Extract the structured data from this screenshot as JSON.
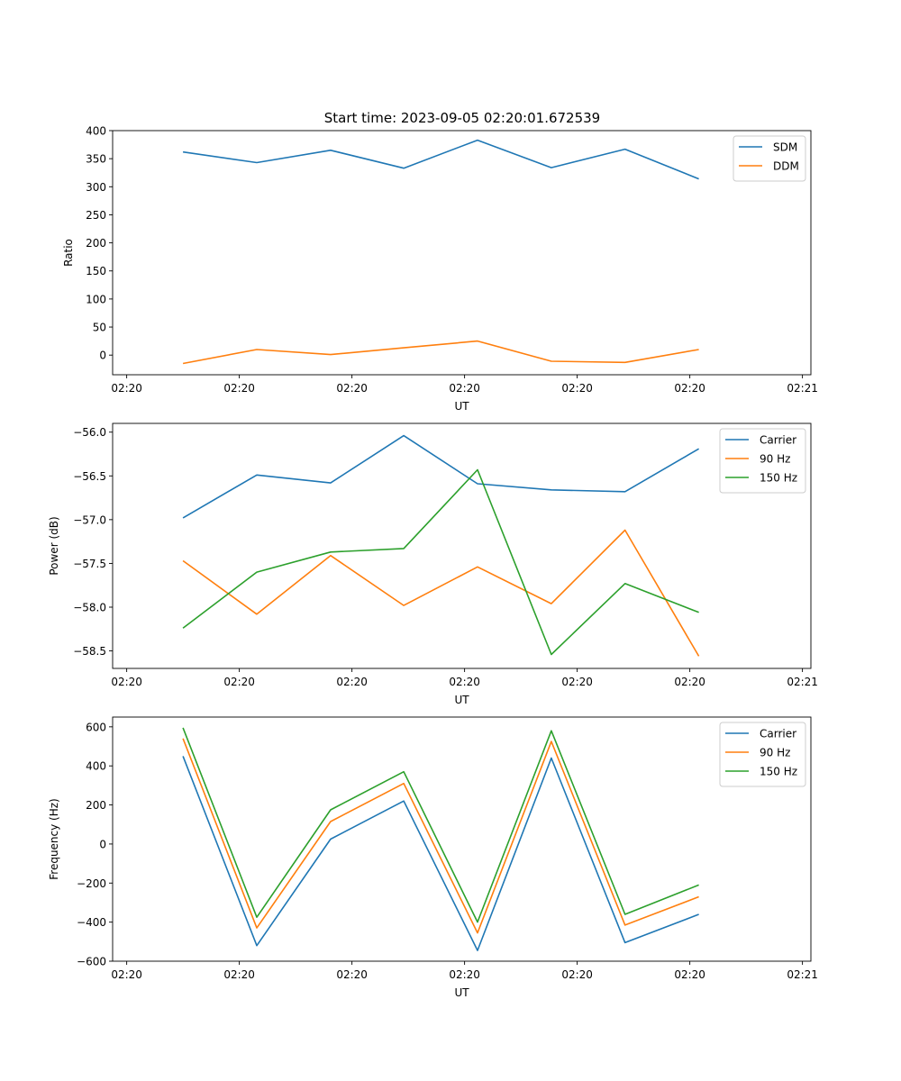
{
  "figure": {
    "title": "Start time: 2023-09-05 02:20:01.672539"
  },
  "colors": {
    "c0": "#1f77b4",
    "c1": "#ff7f0e",
    "c2": "#2ca02c"
  },
  "chart_data": [
    {
      "type": "line",
      "title": "Start time: 2023-09-05 02:20:01.672539",
      "xlabel": "UT",
      "ylabel": "Ratio",
      "xlim": [
        0.0,
        12.4
      ],
      "ylim": [
        -35,
        400
      ],
      "x_ticks": [
        0.25,
        2.25,
        4.25,
        6.25,
        8.25,
        10.25,
        12.25
      ],
      "x_tick_labels": [
        "02:20",
        "02:20",
        "02:20",
        "02:20",
        "02:20",
        "02:20",
        "02:21"
      ],
      "y_ticks": [
        0,
        50,
        100,
        150,
        200,
        250,
        300,
        350,
        400
      ],
      "y_tick_labels": [
        "0",
        "50",
        "100",
        "150",
        "200",
        "250",
        "300",
        "350",
        "400"
      ],
      "legend": "top-right",
      "x": [
        1.25,
        2.56,
        3.87,
        5.17,
        6.48,
        7.79,
        9.1,
        10.41
      ],
      "series": [
        {
          "name": "SDM",
          "color": "#1f77b4",
          "values": [
            362,
            343,
            365,
            333,
            383,
            334,
            367,
            314
          ]
        },
        {
          "name": "DDM",
          "color": "#ff7f0e",
          "values": [
            -15,
            10,
            1,
            13,
            25,
            -11,
            -13,
            10
          ]
        }
      ]
    },
    {
      "type": "line",
      "xlabel": "UT",
      "ylabel": "Power (dB)",
      "xlim": [
        0.0,
        12.4
      ],
      "ylim": [
        -58.7,
        -55.9
      ],
      "x_ticks": [
        0.25,
        2.25,
        4.25,
        6.25,
        8.25,
        10.25,
        12.25
      ],
      "x_tick_labels": [
        "02:20",
        "02:20",
        "02:20",
        "02:20",
        "02:20",
        "02:20",
        "02:21"
      ],
      "y_ticks": [
        -56.0,
        -56.5,
        -57.0,
        -57.5,
        -58.0,
        -58.5
      ],
      "y_tick_labels": [
        "−56.0",
        "−56.5",
        "−57.0",
        "−57.5",
        "−58.0",
        "−58.5"
      ],
      "legend": "top-right",
      "x": [
        1.25,
        2.56,
        3.87,
        5.17,
        6.48,
        7.79,
        9.1,
        10.41
      ],
      "series": [
        {
          "name": "Carrier",
          "color": "#1f77b4",
          "values": [
            -56.98,
            -56.49,
            -56.58,
            -56.04,
            -56.59,
            -56.66,
            -56.68,
            -56.19
          ]
        },
        {
          "name": "90 Hz",
          "color": "#ff7f0e",
          "values": [
            -57.47,
            -58.08,
            -57.41,
            -57.98,
            -57.54,
            -57.96,
            -57.12,
            -58.56
          ]
        },
        {
          "name": "150 Hz",
          "color": "#2ca02c",
          "values": [
            -58.24,
            -57.6,
            -57.37,
            -57.33,
            -56.43,
            -58.54,
            -57.73,
            -58.06
          ]
        }
      ]
    },
    {
      "type": "line",
      "xlabel": "UT",
      "ylabel": "Frequency (Hz)",
      "xlim": [
        0.0,
        12.4
      ],
      "ylim": [
        -600,
        650
      ],
      "x_ticks": [
        0.25,
        2.25,
        4.25,
        6.25,
        8.25,
        10.25,
        12.25
      ],
      "x_tick_labels": [
        "02:20",
        "02:20",
        "02:20",
        "02:20",
        "02:20",
        "02:20",
        "02:21"
      ],
      "y_ticks": [
        600,
        400,
        200,
        0,
        -200,
        -400,
        -600
      ],
      "y_tick_labels": [
        "600",
        "400",
        "200",
        "0",
        "−200",
        "−400",
        "−600"
      ],
      "legend": "top-right",
      "x": [
        1.25,
        2.56,
        3.87,
        5.17,
        6.48,
        7.79,
        9.1,
        10.41
      ],
      "series": [
        {
          "name": "Carrier",
          "color": "#1f77b4",
          "values": [
            450,
            -520,
            25,
            220,
            -545,
            440,
            -505,
            -360
          ]
        },
        {
          "name": "90 Hz",
          "color": "#ff7f0e",
          "values": [
            540,
            -430,
            115,
            310,
            -455,
            525,
            -415,
            -270
          ]
        },
        {
          "name": "150 Hz",
          "color": "#2ca02c",
          "values": [
            595,
            -375,
            175,
            370,
            -400,
            580,
            -360,
            -210
          ]
        }
      ]
    }
  ]
}
